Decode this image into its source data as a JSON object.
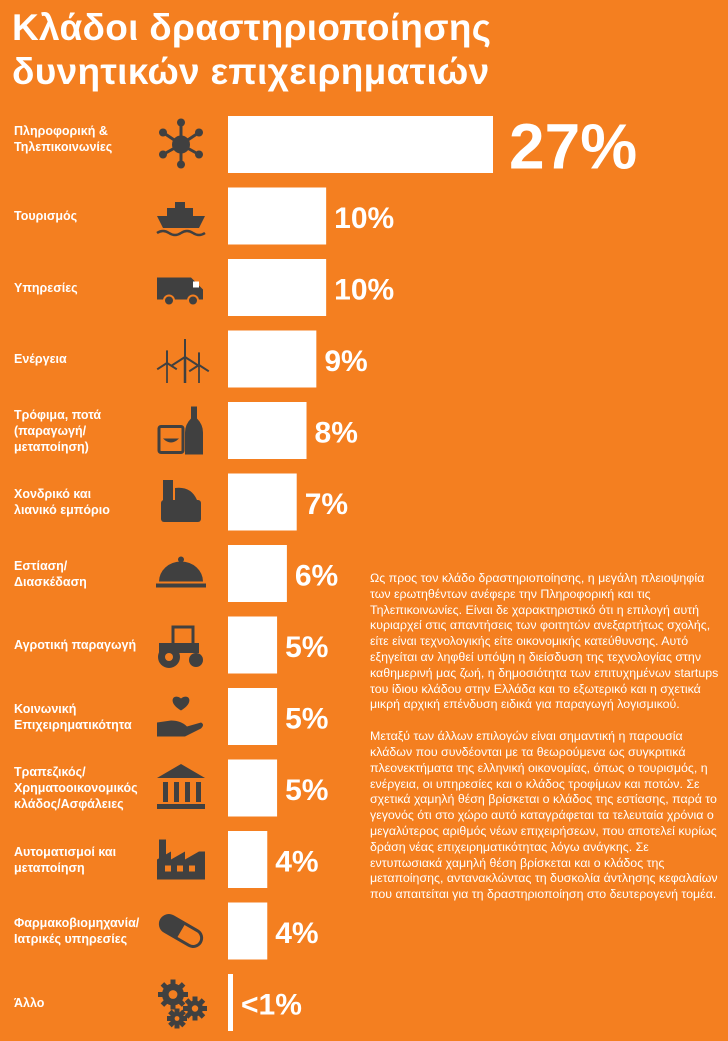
{
  "title_lines": [
    "Κλάδοι δραστηριοποίησης",
    "δυνητικών επιχειρηματιών"
  ],
  "colors": {
    "background": "#f47f20",
    "bar": "#ffffff",
    "icon": "#404040",
    "text": "#ffffff"
  },
  "chart_data": {
    "type": "bar",
    "orientation": "horizontal",
    "title": "Κλάδοι δραστηριοποίησης δυνητικών επιχειρηματιών",
    "xlabel": "",
    "ylabel": "",
    "unit": "%",
    "xlim": [
      0,
      27
    ],
    "grid": false,
    "legend": "none",
    "categories": [
      [
        "Πληροφορική &",
        "Τηλεπικοινωνίες"
      ],
      [
        "Τουρισμός"
      ],
      [
        "Υπηρεσίες"
      ],
      [
        "Ενέργεια"
      ],
      [
        "Τρόφιμα, ποτά",
        "(παραγωγή/",
        "μεταποίηση)"
      ],
      [
        "Χονδρικό και",
        "λιανικό εμπόριο"
      ],
      [
        "Εστίαση/",
        "Διασκέδαση"
      ],
      [
        "Αγροτική παραγωγή"
      ],
      [
        "Κοινωνική",
        "Επιχειρηματικότητα"
      ],
      [
        "Τραπεζικός/",
        "Χρηματοοικονομικός",
        "κλάδος/Ασφάλειες"
      ],
      [
        "Αυτοματισμοί και",
        "μεταποίηση"
      ],
      [
        "Φαρμακοβιομηχανία/",
        "Ιατρικές υπηρεσίες"
      ],
      [
        "Άλλο"
      ]
    ],
    "values": [
      27,
      10,
      10,
      9,
      8,
      7,
      6,
      5,
      5,
      5,
      4,
      4,
      0.5
    ],
    "value_labels": [
      "27%",
      "10%",
      "10%",
      "9%",
      "8%",
      "7%",
      "6%",
      "5%",
      "5%",
      "5%",
      "4%",
      "4%",
      "<1%"
    ],
    "icons": [
      "network-icon",
      "ship-icon",
      "van-icon",
      "wind-turbine-icon",
      "food-drink-icon",
      "cash-register-icon",
      "cloche-icon",
      "tractor-icon",
      "heart-hand-icon",
      "bank-icon",
      "factory-icon",
      "pill-icon",
      "gears-icon"
    ]
  },
  "body_paragraphs": [
    "Ως προς τον κλάδο δραστηριοποίησης, η μεγάλη πλειοψηφία των ερωτηθέντων ανέφερε την Πληροφορική και τις Τηλεπικοινωνίες. Είναι δε χαρακτηριστικό ότι η επιλογή αυτή κυριαρχεί στις απαντήσεις των φοιτητών ανεξαρτήτως σχολής, είτε είναι τεχνολογικής είτε οικονομικής κατεύθυνσης. Αυτό εξηγείται αν ληφθεί υπόψη η διείσδυση της τεχνολογίας στην καθημερινή μας ζωή, η δημοσιότητα των επιτυχημένων startups του ίδιου κλάδου στην Ελλάδα και το εξωτερικό και η σχετικά μικρή αρχική επένδυση ειδικά για παραγωγή λογισμικού.",
    "Μεταξύ των άλλων επιλογών είναι σημαντική η παρουσία κλάδων που συνδέονται με τα θεωρούμενα ως συγκριτικά πλεονεκτήματα της ελληνική οικονομίας, όπως ο τουρισμός, η ενέργεια, οι υπηρεσίες και ο κλάδος τροφίμων και ποτών. Σε σχετικά χαμηλή θέση βρίσκεται ο κλάδος της εστίασης, παρά το γεγονός ότι στο χώρο αυτό καταγράφεται τα τελευταία χρόνια ο μεγαλύτερος αριθμός νέων επιχειρήσεων, που αποτελεί κυρίως δράση νέας επιχειρηματικότητας λόγω ανάγκης. Σε εντυπωσιακά χαμηλή θέση βρίσκεται και ο κλάδος της μεταποίησης, αντανακλώντας τη δυσκολία άντλησης κεφαλαίων που απαιτείται για τη δραστηριοποίηση στο δευτερογενή τομέα."
  ]
}
